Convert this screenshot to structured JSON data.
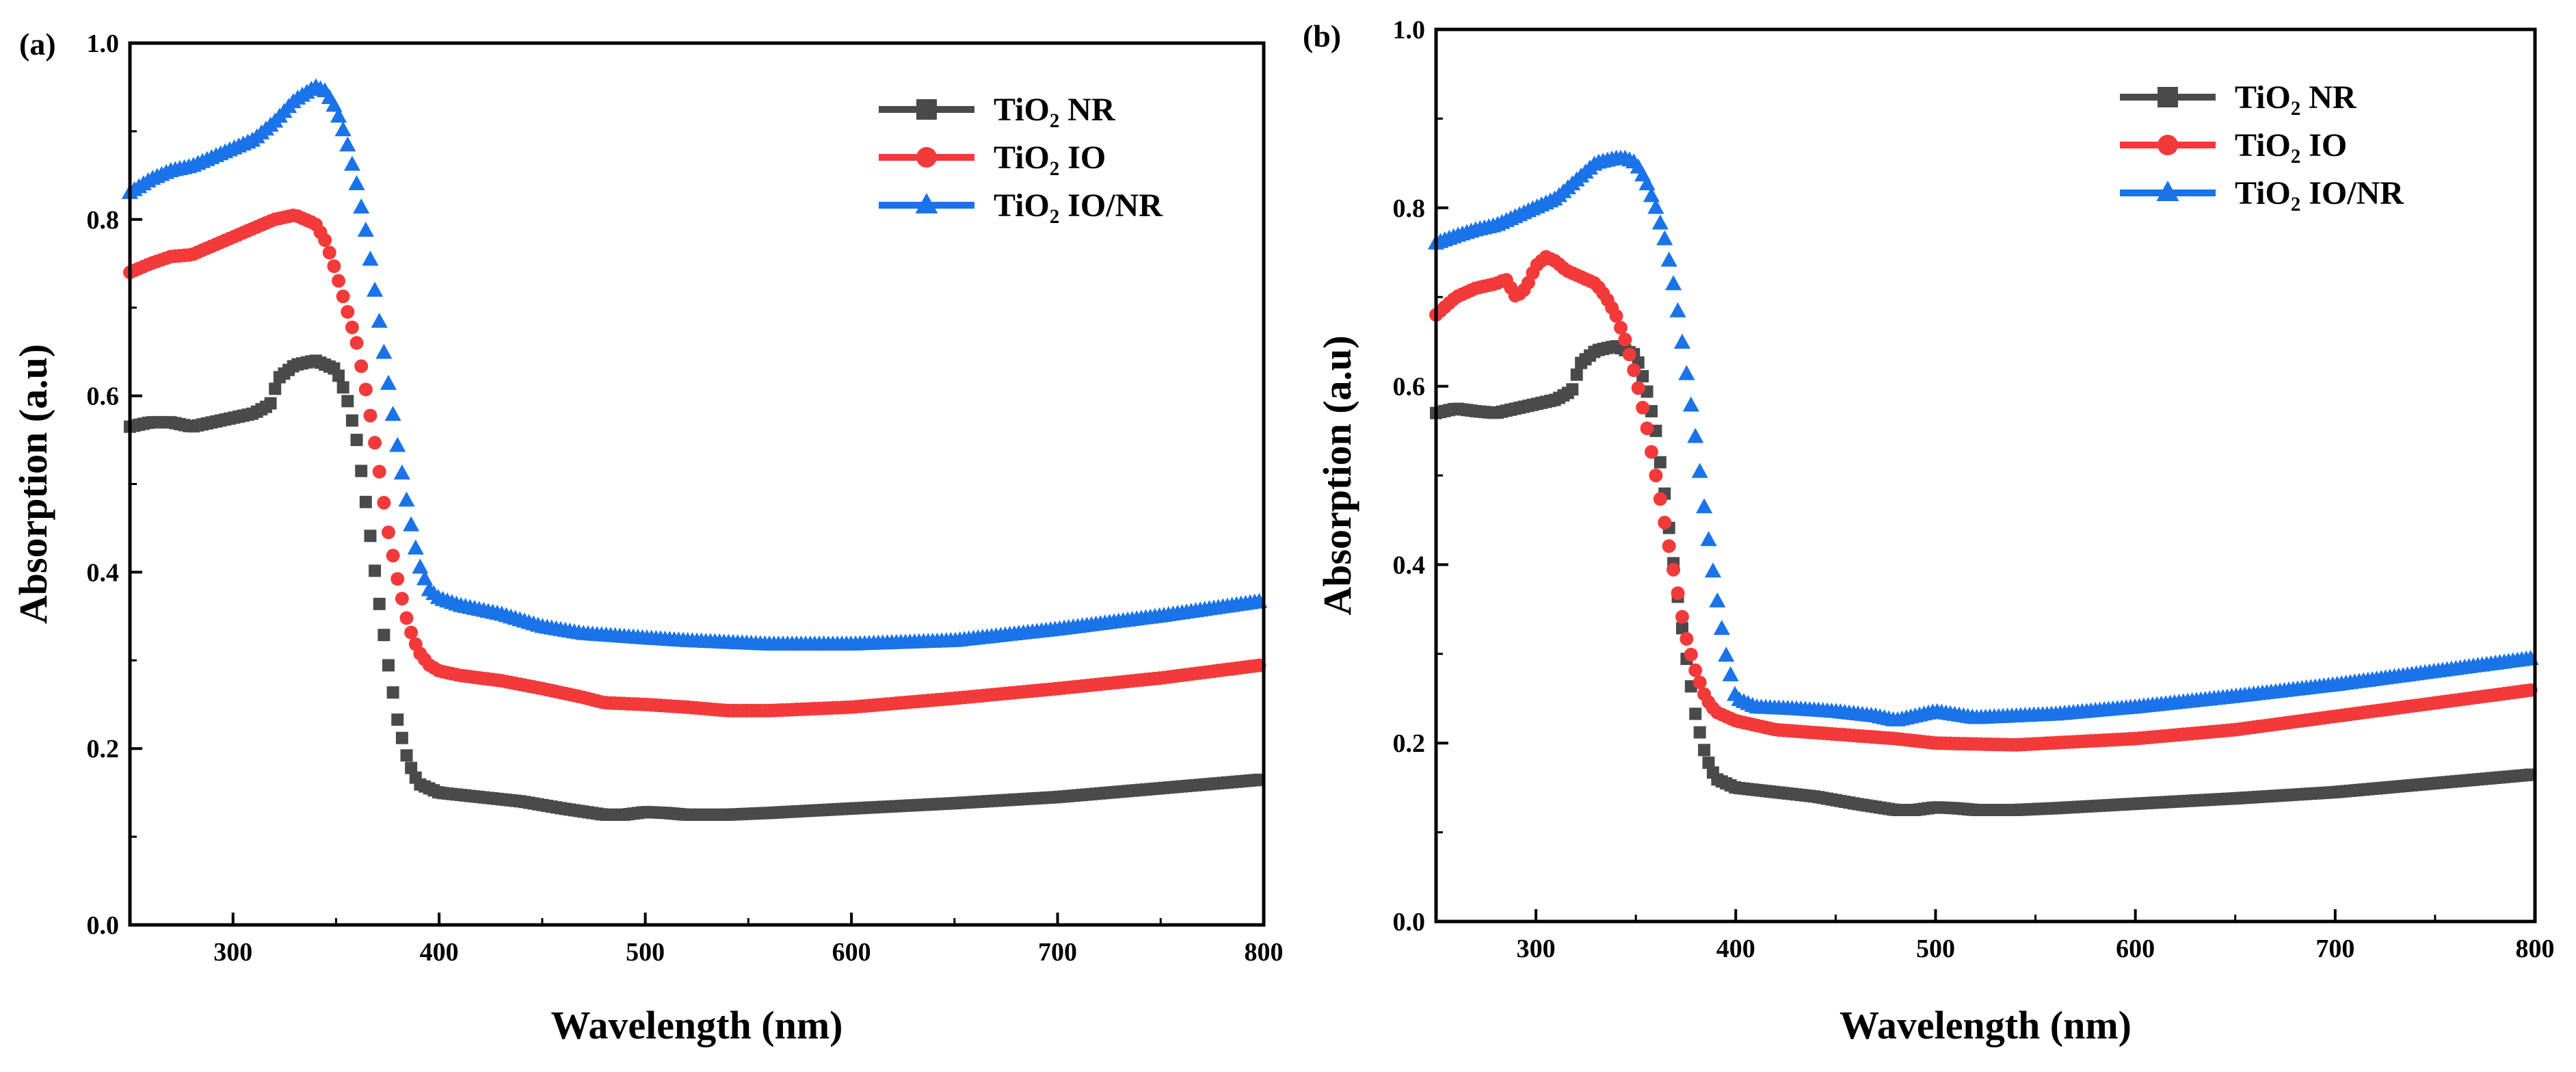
{
  "chart_data": [
    {
      "type": "line",
      "panel_label": "(a)",
      "xlabel": "Wavelength (nm)",
      "ylabel": "Absorption (a.u)",
      "xlim": [
        250,
        800
      ],
      "ylim": [
        0.0,
        1.0
      ],
      "xticks": [
        "300",
        "400",
        "500",
        "600",
        "700",
        "800"
      ],
      "yticks": [
        "0.0",
        "0.2",
        "0.4",
        "0.6",
        "0.8",
        "1.0"
      ],
      "legend_position": "top-right",
      "series": [
        {
          "name": "TiO₂ NR",
          "color": "#4a4a4a",
          "marker": "square",
          "x": [
            250,
            260,
            270,
            280,
            290,
            300,
            310,
            318,
            322,
            330,
            340,
            350,
            355,
            360,
            365,
            370,
            375,
            380,
            385,
            390,
            400,
            420,
            440,
            460,
            480,
            490,
            500,
            510,
            520,
            540,
            560,
            600,
            650,
            700,
            750,
            800
          ],
          "y": [
            0.565,
            0.57,
            0.57,
            0.565,
            0.57,
            0.575,
            0.58,
            0.59,
            0.62,
            0.635,
            0.64,
            0.63,
            0.6,
            0.55,
            0.47,
            0.38,
            0.3,
            0.23,
            0.185,
            0.16,
            0.15,
            0.145,
            0.14,
            0.132,
            0.125,
            0.125,
            0.128,
            0.127,
            0.125,
            0.125,
            0.127,
            0.132,
            0.138,
            0.145,
            0.155,
            0.165
          ]
        },
        {
          "name": "TiO₂ IO",
          "color": "#f23a3a",
          "marker": "circle",
          "x": [
            250,
            260,
            270,
            280,
            290,
            300,
            310,
            320,
            330,
            340,
            345,
            350,
            355,
            360,
            365,
            370,
            375,
            380,
            385,
            390,
            395,
            400,
            410,
            430,
            450,
            470,
            480,
            500,
            520,
            540,
            560,
            600,
            650,
            700,
            750,
            800
          ],
          "y": [
            0.74,
            0.75,
            0.758,
            0.76,
            0.77,
            0.78,
            0.79,
            0.8,
            0.805,
            0.795,
            0.775,
            0.74,
            0.7,
            0.66,
            0.6,
            0.53,
            0.45,
            0.39,
            0.34,
            0.31,
            0.295,
            0.288,
            0.283,
            0.277,
            0.268,
            0.258,
            0.252,
            0.25,
            0.247,
            0.243,
            0.243,
            0.247,
            0.257,
            0.268,
            0.28,
            0.295
          ]
        },
        {
          "name": "TiO₂ IO/NR",
          "color": "#1a73e8",
          "marker": "triangle",
          "x": [
            250,
            260,
            270,
            280,
            290,
            300,
            310,
            320,
            330,
            340,
            345,
            350,
            355,
            360,
            365,
            370,
            375,
            380,
            385,
            390,
            395,
            400,
            410,
            430,
            450,
            470,
            500,
            520,
            540,
            560,
            580,
            600,
            650,
            700,
            750,
            800
          ],
          "y": [
            0.83,
            0.845,
            0.855,
            0.86,
            0.87,
            0.88,
            0.89,
            0.91,
            0.935,
            0.95,
            0.945,
            0.925,
            0.89,
            0.84,
            0.78,
            0.7,
            0.62,
            0.54,
            0.47,
            0.41,
            0.38,
            0.37,
            0.362,
            0.352,
            0.338,
            0.33,
            0.325,
            0.322,
            0.32,
            0.318,
            0.318,
            0.318,
            0.322,
            0.335,
            0.35,
            0.367
          ]
        }
      ]
    },
    {
      "type": "line",
      "panel_label": "(b)",
      "xlabel": "Wavelength (nm)",
      "ylabel": "Absorption (a.u)",
      "xlim": [
        250,
        800
      ],
      "ylim": [
        0.0,
        1.0
      ],
      "xticks": [
        "300",
        "400",
        "500",
        "600",
        "700",
        "800"
      ],
      "yticks": [
        "0.0",
        "0.2",
        "0.4",
        "0.6",
        "0.8",
        "1.0"
      ],
      "legend_position": "top-right",
      "series": [
        {
          "name": "TiO₂ NR",
          "color": "#4a4a4a",
          "marker": "square",
          "x": [
            250,
            260,
            270,
            280,
            290,
            300,
            310,
            318,
            322,
            330,
            340,
            350,
            355,
            360,
            365,
            370,
            375,
            380,
            385,
            390,
            400,
            420,
            440,
            460,
            480,
            490,
            500,
            510,
            520,
            540,
            560,
            600,
            650,
            700,
            750,
            800
          ],
          "y": [
            0.57,
            0.575,
            0.572,
            0.57,
            0.575,
            0.58,
            0.585,
            0.595,
            0.625,
            0.64,
            0.645,
            0.635,
            0.6,
            0.55,
            0.47,
            0.38,
            0.3,
            0.23,
            0.185,
            0.16,
            0.15,
            0.145,
            0.14,
            0.132,
            0.125,
            0.125,
            0.128,
            0.127,
            0.125,
            0.125,
            0.127,
            0.132,
            0.138,
            0.145,
            0.155,
            0.165
          ]
        },
        {
          "name": "TiO₂ IO",
          "color": "#f23a3a",
          "marker": "circle",
          "x": [
            250,
            260,
            270,
            280,
            285,
            290,
            295,
            300,
            305,
            310,
            315,
            320,
            330,
            335,
            340,
            345,
            350,
            355,
            360,
            365,
            370,
            375,
            380,
            385,
            390,
            400,
            420,
            450,
            480,
            500,
            540,
            600,
            650,
            700,
            750,
            800
          ],
          "y": [
            0.68,
            0.7,
            0.71,
            0.715,
            0.72,
            0.7,
            0.71,
            0.735,
            0.745,
            0.74,
            0.73,
            0.725,
            0.715,
            0.7,
            0.68,
            0.65,
            0.61,
            0.56,
            0.5,
            0.44,
            0.38,
            0.32,
            0.28,
            0.25,
            0.235,
            0.225,
            0.215,
            0.21,
            0.205,
            0.2,
            0.198,
            0.205,
            0.215,
            0.23,
            0.245,
            0.26
          ]
        },
        {
          "name": "TiO₂ IO/NR",
          "color": "#1a73e8",
          "marker": "triangle",
          "x": [
            250,
            260,
            270,
            280,
            290,
            300,
            310,
            320,
            330,
            340,
            345,
            350,
            355,
            360,
            365,
            370,
            375,
            380,
            385,
            390,
            395,
            400,
            410,
            430,
            450,
            470,
            480,
            500,
            520,
            540,
            560,
            600,
            650,
            700,
            750,
            800
          ],
          "y": [
            0.76,
            0.768,
            0.775,
            0.78,
            0.79,
            0.8,
            0.81,
            0.83,
            0.85,
            0.855,
            0.855,
            0.85,
            0.83,
            0.8,
            0.76,
            0.7,
            0.62,
            0.54,
            0.45,
            0.37,
            0.3,
            0.25,
            0.24,
            0.238,
            0.235,
            0.23,
            0.225,
            0.235,
            0.228,
            0.23,
            0.232,
            0.24,
            0.252,
            0.265,
            0.28,
            0.295
          ]
        }
      ]
    }
  ]
}
